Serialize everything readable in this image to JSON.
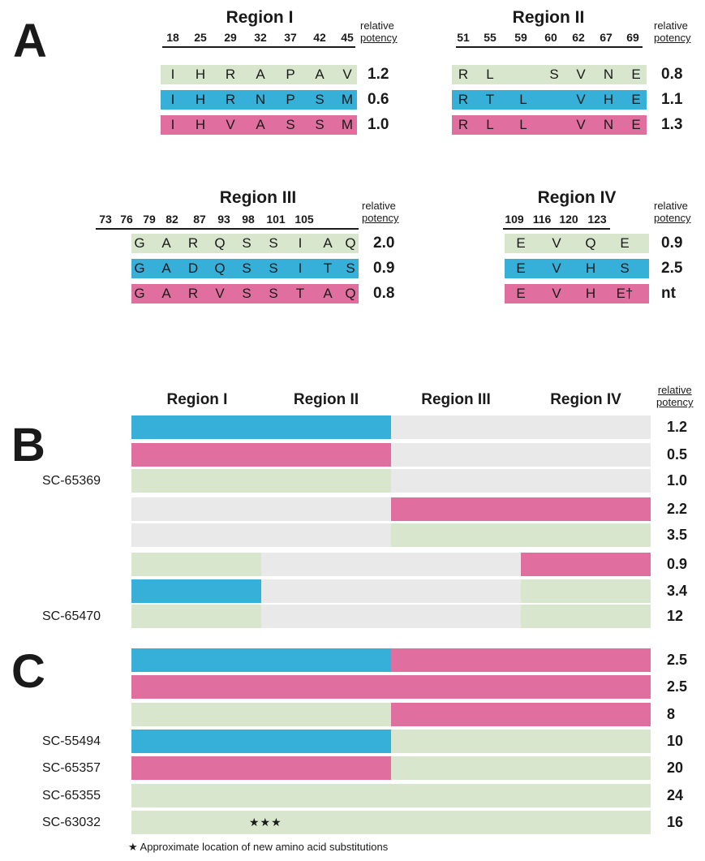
{
  "panels": {
    "a": "A",
    "b": "B",
    "c": "C"
  },
  "colors": {
    "green": "#d8e6cd",
    "blue": "#36b0d8",
    "pink": "#e06fa0",
    "grey": "#e9e9e9"
  },
  "potency_header": {
    "line1": "relative",
    "line2": "potency"
  },
  "panel_a": {
    "region1": {
      "title": "Region I",
      "positions": [
        "18",
        "25",
        "29",
        "32",
        "37",
        "42",
        "45"
      ],
      "rows": [
        {
          "color": "green",
          "residues": [
            "I",
            "H",
            "R",
            "A",
            "P",
            "A",
            "V"
          ],
          "potency": "1.2"
        },
        {
          "color": "blue",
          "residues": [
            "I",
            "H",
            "R",
            "N",
            "P",
            "S",
            "M"
          ],
          "potency": "0.6"
        },
        {
          "color": "pink",
          "residues": [
            "I",
            "H",
            "V",
            "A",
            "S",
            "S",
            "M"
          ],
          "potency": "1.0"
        }
      ]
    },
    "region2": {
      "title": "Region II",
      "positions": [
        "51",
        "55",
        "59",
        "60",
        "62",
        "67",
        "69"
      ],
      "rows": [
        {
          "color": "green",
          "residues": [
            "R",
            "L",
            "",
            "S",
            "V",
            "N",
            "E"
          ],
          "potency": "0.8"
        },
        {
          "color": "blue",
          "residues": [
            "R",
            "T",
            "L",
            "",
            "V",
            "H",
            "E"
          ],
          "potency": "1.1"
        },
        {
          "color": "pink",
          "residues": [
            "R",
            "L",
            "L",
            "",
            "V",
            "N",
            "E"
          ],
          "potency": "1.3"
        }
      ]
    },
    "region3": {
      "title": "Region III",
      "positions": [
        "73",
        "76",
        "79",
        "82",
        "87",
        "93",
        "98",
        "101",
        "105"
      ],
      "rows": [
        {
          "color": "green",
          "residues": [
            "G",
            "A",
            "R",
            "Q",
            "S",
            "S",
            "I",
            "A",
            "Q"
          ],
          "potency": "2.0"
        },
        {
          "color": "blue",
          "residues": [
            "G",
            "A",
            "D",
            "Q",
            "S",
            "S",
            "I",
            "T",
            "S"
          ],
          "potency": "0.9"
        },
        {
          "color": "pink",
          "residues": [
            "G",
            "A",
            "R",
            "V",
            "S",
            "S",
            "T",
            "A",
            "Q"
          ],
          "potency": "0.8"
        }
      ]
    },
    "region4": {
      "title": "Region IV",
      "positions": [
        "109",
        "116",
        "120",
        "123"
      ],
      "rows": [
        {
          "color": "green",
          "residues": [
            "E",
            "V",
            "Q",
            "E"
          ],
          "potency": "0.9"
        },
        {
          "color": "blue",
          "residues": [
            "E",
            "V",
            "H",
            "S"
          ],
          "potency": "2.5"
        },
        {
          "color": "pink",
          "residues": [
            "E",
            "V",
            "H",
            "E†"
          ],
          "potency": "nt"
        }
      ]
    }
  },
  "bar_chart": {
    "column_headers": [
      "Region I",
      "Region II",
      "Region III",
      "Region IV"
    ],
    "rows": [
      {
        "label": "",
        "segments": [
          "blue",
          "blue",
          "grey",
          "grey"
        ],
        "potency": "1.2"
      },
      {
        "label": "",
        "segments": [
          "pink",
          "pink",
          "grey",
          "grey"
        ],
        "potency": "0.5"
      },
      {
        "label": "SC-65369",
        "segments": [
          "green",
          "green",
          "grey",
          "grey"
        ],
        "potency": "1.0"
      },
      {
        "label": "",
        "segments": [
          "grey",
          "grey",
          "pink",
          "pink"
        ],
        "potency": "2.2"
      },
      {
        "label": "",
        "segments": [
          "grey",
          "grey",
          "green",
          "green"
        ],
        "potency": "3.5"
      },
      {
        "label": "",
        "segments": [
          "green",
          "grey",
          "grey",
          "pink"
        ],
        "potency": "0.9"
      },
      {
        "label": "",
        "segments": [
          "blue",
          "grey",
          "grey",
          "green"
        ],
        "potency": "3.4"
      },
      {
        "label": "SC-65470",
        "segments": [
          "green",
          "grey",
          "grey",
          "green"
        ],
        "potency": "12"
      },
      {
        "label": "",
        "segments": [
          "blue",
          "blue",
          "pink",
          "pink"
        ],
        "potency": "2.5"
      },
      {
        "label": "",
        "segments": [
          "pink",
          "pink",
          "pink",
          "pink"
        ],
        "potency": "2.5"
      },
      {
        "label": "",
        "segments": [
          "green",
          "green",
          "pink",
          "pink"
        ],
        "potency": "8"
      },
      {
        "label": "SC-55494",
        "segments": [
          "blue",
          "blue",
          "green",
          "green"
        ],
        "potency": "10"
      },
      {
        "label": "SC-65357",
        "segments": [
          "pink",
          "pink",
          "green",
          "green"
        ],
        "potency": "20"
      },
      {
        "label": "SC-65355",
        "segments": [
          "green",
          "green",
          "green",
          "green"
        ],
        "potency": "24"
      },
      {
        "label": "SC-63032",
        "segments": [
          "green",
          "green",
          "green",
          "green"
        ],
        "potency": "16",
        "marker": "★★★"
      }
    ]
  },
  "footnote": "★ Approximate location of new amino acid substitutions"
}
